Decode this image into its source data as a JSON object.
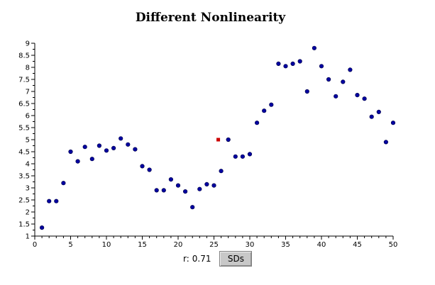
{
  "chart_data": {
    "type": "scatter",
    "title": "Different Nonlinearity",
    "xlabel": "",
    "ylabel": "",
    "xlim": [
      0,
      50
    ],
    "ylim": [
      1,
      9
    ],
    "xticks": [
      0,
      5,
      10,
      15,
      20,
      25,
      30,
      35,
      40,
      45,
      50
    ],
    "yticks": [
      1,
      1.5,
      2,
      2.5,
      3,
      3.5,
      4,
      4.5,
      5,
      5.5,
      6,
      6.5,
      7,
      7.5,
      8,
      8.5,
      9
    ],
    "grid": false,
    "points": {
      "x": [
        1,
        2,
        3,
        4,
        5,
        6,
        7,
        8,
        9,
        10,
        11,
        12,
        13,
        14,
        15,
        16,
        17,
        18,
        19,
        20,
        21,
        22,
        23,
        24,
        25,
        26,
        27,
        28,
        29,
        30,
        31,
        32,
        33,
        34,
        35,
        36,
        37,
        38,
        39,
        40,
        41,
        42,
        43,
        44,
        45,
        46,
        47,
        48,
        49,
        50
      ],
      "y": [
        1.35,
        2.45,
        2.45,
        3.2,
        4.5,
        4.1,
        4.7,
        4.2,
        4.75,
        4.55,
        4.65,
        5.05,
        4.8,
        4.6,
        3.9,
        3.75,
        2.9,
        2.9,
        3.35,
        3.1,
        2.85,
        2.2,
        2.95,
        3.15,
        3.1,
        3.7,
        5.0,
        4.3,
        4.3,
        4.4,
        5.7,
        6.2,
        6.45,
        8.15,
        8.05,
        8.15,
        8.25,
        7.0,
        8.8,
        8.05,
        7.5,
        6.8,
        7.4,
        7.9,
        6.85,
        6.7,
        5.95,
        6.15,
        4.9,
        5.7
      ],
      "color": "#0000a0"
    },
    "marker": {
      "x": 25.6,
      "y": 5.0,
      "color": "#cc0000"
    }
  },
  "controls": {
    "r_label": "r:",
    "r_value": "0.71",
    "sd_button_label": "SDs"
  }
}
